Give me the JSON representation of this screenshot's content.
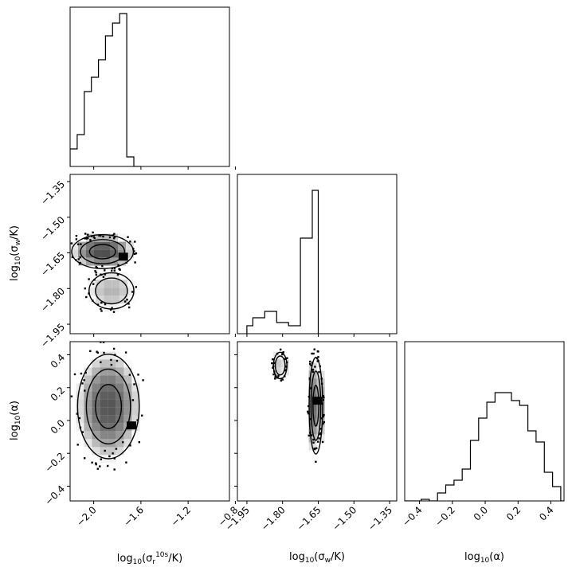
{
  "chart_data": {
    "type": "corner",
    "parameters": [
      {
        "id": "sr",
        "label": "log10(σr^10s/K)",
        "range": [
          -2.2,
          -0.85
        ],
        "ticks": [
          -2.0,
          -1.6,
          -1.2,
          -0.8
        ],
        "tick_labels": [
          "−2.0",
          "−1.6",
          "−1.2",
          "−0.8"
        ]
      },
      {
        "id": "sw",
        "label": "log10(σw/K)",
        "range": [
          -1.99,
          -1.32
        ],
        "ticks": [
          -1.95,
          -1.8,
          -1.65,
          -1.5,
          -1.35
        ],
        "tick_labels": [
          "−1.95",
          "−1.80",
          "−1.65",
          "−1.50",
          "−1.35"
        ]
      },
      {
        "id": "alpha",
        "label": "log10(α)",
        "range": [
          -0.49,
          0.48
        ],
        "ticks": [
          -0.4,
          -0.2,
          0.0,
          0.2,
          0.4
        ],
        "tick_labels": [
          "−0.4",
          "−0.2",
          "0.0",
          "0.2",
          "0.4"
        ]
      }
    ],
    "histograms": [
      {
        "param": "sr",
        "bin_edges": [
          -2.2,
          -2.14,
          -2.08,
          -2.02,
          -1.96,
          -1.9,
          -1.84,
          -1.78,
          -1.72,
          -1.66,
          -1.6
        ],
        "values": [
          0.11,
          0.2,
          0.47,
          0.56,
          0.67,
          0.82,
          0.9,
          0.96,
          0.06,
          0.0
        ]
      },
      {
        "param": "sw",
        "bin_edges": [
          -1.95,
          -1.925,
          -1.9,
          -1.875,
          -1.85,
          -1.825,
          -1.8,
          -1.775,
          -1.75,
          -1.725,
          -1.7,
          -1.675,
          -1.65
        ],
        "values": [
          0.05,
          0.1,
          0.1,
          0.14,
          0.14,
          0.07,
          0.07,
          0.05,
          0.05,
          0.6,
          0.6,
          0.9
        ]
      },
      {
        "param": "alpha",
        "bin_edges": [
          -0.49,
          -0.44,
          -0.39,
          -0.34,
          -0.29,
          -0.24,
          -0.19,
          -0.14,
          -0.09,
          -0.04,
          0.01,
          0.06,
          0.11,
          0.16,
          0.21,
          0.26,
          0.31,
          0.36,
          0.41,
          0.46,
          0.48
        ],
        "values": [
          0.0,
          0.0,
          0.01,
          0.0,
          0.05,
          0.1,
          0.13,
          0.2,
          0.38,
          0.52,
          0.62,
          0.68,
          0.68,
          0.63,
          0.6,
          0.44,
          0.37,
          0.18,
          0.09,
          0.0
        ]
      }
    ],
    "correlations": [
      {
        "x": "sr",
        "y": "sw",
        "peak": [
          -1.75,
          -1.666
        ],
        "clusters": [
          {
            "x": [
              -2.2,
              -1.65
            ],
            "y": [
              -1.72,
              -1.57
            ],
            "density": 0.95
          },
          {
            "x": [
              -2.05,
              -1.65
            ],
            "y": [
              -1.89,
              -1.73
            ],
            "density": 0.4
          }
        ]
      },
      {
        "x": "sr",
        "y": "alpha",
        "peak": [
          -1.68,
          -0.03
        ],
        "clusters": [
          {
            "x": [
              -2.15,
              -1.6
            ],
            "y": [
              -0.25,
              0.42
            ],
            "density": 0.9
          }
        ]
      },
      {
        "x": "sw",
        "y": "alpha",
        "peak": [
          -1.655,
          0.12
        ],
        "clusters": [
          {
            "x": [
              -1.69,
              -1.63
            ],
            "y": [
              -0.22,
              0.4
            ],
            "density": 0.95
          },
          {
            "x": [
              -1.84,
              -1.78
            ],
            "y": [
              0.25,
              0.42
            ],
            "density": 0.35
          }
        ]
      }
    ],
    "grid": false,
    "legend": "none"
  }
}
